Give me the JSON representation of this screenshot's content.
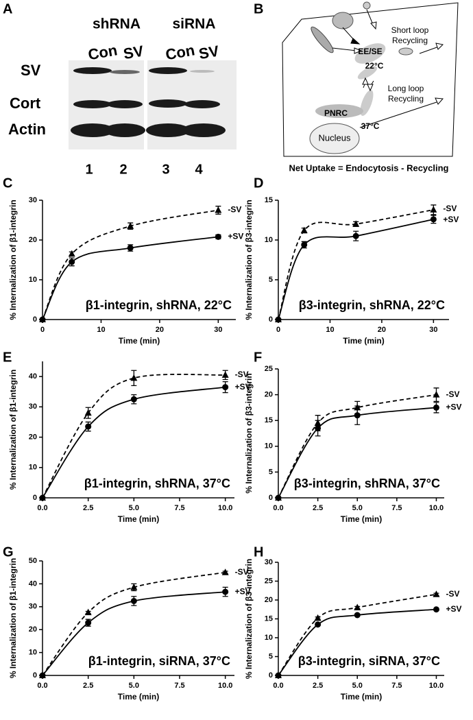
{
  "panel_a": {
    "label": "A",
    "groups": [
      "shRNA",
      "siRNA"
    ],
    "lanes": [
      "Con",
      "SV",
      "Con",
      "SV"
    ],
    "rows": [
      "SV",
      "Cort",
      "Actin"
    ],
    "lane_numbers": [
      "1",
      "2",
      "3",
      "4"
    ]
  },
  "panel_b": {
    "label": "B",
    "early": "EE/SE",
    "early_temp": "22°C",
    "perinuclear": "PNRC",
    "perinuclear_temp": "37°C",
    "nucleus": "Nucleus",
    "short_loop": [
      "Short loop",
      "Recycling"
    ],
    "long_loop": [
      "Long loop",
      "Recycling"
    ],
    "caption": "Net Uptake = Endocytosis - Recycling"
  },
  "chart_data": [
    {
      "label": "C",
      "type": "line",
      "title": "β1-integrin, shRNA, 22°C",
      "x_label": "Time (min)",
      "y_label": "% Internalization of β1-integrin",
      "x": [
        0,
        5,
        15,
        30
      ],
      "xlim": [
        0,
        33
      ],
      "xticks": [
        0,
        10,
        20,
        30
      ],
      "ylim": [
        0,
        30
      ],
      "yticks": [
        0,
        10,
        20,
        30
      ],
      "series": [
        {
          "name": "-SV",
          "color": "#000000",
          "marker": "triangle",
          "line_style": "dashed",
          "values": [
            0,
            16.5,
            23.5,
            27.5
          ],
          "errors": [
            0,
            0.5,
            0.8,
            1.0
          ]
        },
        {
          "name": "+SV",
          "color": "#000000",
          "marker": "circle",
          "line_style": "solid",
          "values": [
            0,
            14.5,
            18,
            20.8
          ],
          "errors": [
            0,
            1.0,
            0.8,
            0.5
          ]
        }
      ]
    },
    {
      "label": "D",
      "type": "line",
      "title": "β3-integrin, shRNA, 22°C",
      "x_label": "Time (min)",
      "y_label": "% Internalization of β3-integrin",
      "x": [
        0,
        5,
        15,
        30
      ],
      "xlim": [
        0,
        33
      ],
      "xticks": [
        0,
        10,
        20,
        30
      ],
      "ylim": [
        0,
        15
      ],
      "yticks": [
        0,
        5,
        10,
        15
      ],
      "series": [
        {
          "name": "-SV",
          "color": "#000000",
          "marker": "triangle",
          "line_style": "dashed",
          "values": [
            0,
            11.2,
            12,
            13.8
          ],
          "errors": [
            0,
            0.3,
            0.3,
            0.6
          ]
        },
        {
          "name": "+SV",
          "color": "#000000",
          "marker": "circle",
          "line_style": "solid",
          "values": [
            0,
            9.4,
            10.5,
            12.6
          ],
          "errors": [
            0,
            0.4,
            0.6,
            0.5
          ]
        }
      ]
    },
    {
      "label": "E",
      "type": "line",
      "title": "β1-integrin, shRNA, 37°C",
      "x_label": "Time (min)",
      "y_label": "% Internalization of β1-integrin",
      "x": [
        0,
        2.5,
        5,
        10
      ],
      "xlim": [
        0,
        10.5
      ],
      "xticks": [
        {
          "value": 0,
          "label": "0.0"
        },
        2.5,
        {
          "value": 5,
          "label": "5.0"
        },
        7.5,
        {
          "value": 10,
          "label": "10.0"
        }
      ],
      "ylim": [
        0,
        45
      ],
      "yticks": [
        0,
        10,
        20,
        30,
        40
      ],
      "series": [
        {
          "name": "-SV",
          "color": "#000000",
          "marker": "triangle",
          "line_style": "dashed",
          "values": [
            0,
            28,
            39.5,
            40.5
          ],
          "errors": [
            0,
            1.8,
            2.5,
            1.5
          ]
        },
        {
          "name": "+SV",
          "color": "#000000",
          "marker": "circle",
          "line_style": "solid",
          "values": [
            0,
            23.5,
            32.5,
            36.5
          ],
          "errors": [
            0,
            1.5,
            1.5,
            1.8
          ]
        }
      ]
    },
    {
      "label": "F",
      "type": "line",
      "title": "β3-integrin, shRNA, 37°C",
      "x_label": "Time (min)",
      "y_label": "% Internalization of β3-integrin",
      "x": [
        0,
        2.5,
        5,
        10
      ],
      "xlim": [
        0,
        10.5
      ],
      "xticks": [
        {
          "value": 0,
          "label": "0.0"
        },
        2.5,
        {
          "value": 5,
          "label": "5.0"
        },
        7.5,
        {
          "value": 10,
          "label": "10.0"
        }
      ],
      "ylim": [
        0,
        25
      ],
      "yticks": [
        0,
        5,
        10,
        15,
        20,
        25
      ],
      "series": [
        {
          "name": "-SV",
          "color": "#000000",
          "marker": "triangle",
          "line_style": "dashed",
          "values": [
            0,
            14.5,
            17.5,
            20
          ],
          "errors": [
            0,
            1.5,
            1.2,
            1.3
          ]
        },
        {
          "name": "+SV",
          "color": "#000000",
          "marker": "circle",
          "line_style": "solid",
          "values": [
            0,
            13.5,
            16,
            17.5
          ],
          "errors": [
            0,
            1.5,
            1.8,
            1.0
          ]
        }
      ]
    },
    {
      "label": "G",
      "type": "line",
      "title": "β1-integrin, siRNA, 37°C",
      "x_label": "Time (min)",
      "y_label": "% Internalization of β1-integrin",
      "x": [
        0,
        2.5,
        5,
        10
      ],
      "xlim": [
        0,
        10.5
      ],
      "xticks": [
        {
          "value": 0,
          "label": "0.0"
        },
        2.5,
        {
          "value": 5,
          "label": "5.0"
        },
        7.5,
        {
          "value": 10,
          "label": "10.0"
        }
      ],
      "ylim": [
        0,
        50
      ],
      "yticks": [
        0,
        10,
        20,
        30,
        40,
        50
      ],
      "series": [
        {
          "name": "-SV",
          "color": "#000000",
          "marker": "triangle",
          "line_style": "dashed",
          "values": [
            0,
            27.5,
            38.5,
            45
          ],
          "errors": [
            0,
            0.5,
            1.5,
            0.5
          ]
        },
        {
          "name": "+SV",
          "color": "#000000",
          "marker": "circle",
          "line_style": "solid",
          "values": [
            0,
            23,
            32.5,
            36.5
          ],
          "errors": [
            0,
            1.5,
            2.0,
            2.0
          ]
        }
      ]
    },
    {
      "label": "H",
      "type": "line",
      "title": "β3-integrin, siRNA, 37°C",
      "x_label": "Time (min)",
      "y_label": "% Internalization of β3-integrin",
      "x": [
        0,
        2.5,
        5,
        10
      ],
      "xlim": [
        0,
        10.5
      ],
      "xticks": [
        {
          "value": 0,
          "label": "0.0"
        },
        2.5,
        {
          "value": 5,
          "label": "5.0"
        },
        7.5,
        {
          "value": 10,
          "label": "10.0"
        }
      ],
      "ylim": [
        0,
        30
      ],
      "yticks": [
        0,
        5,
        10,
        15,
        20,
        25,
        30
      ],
      "series": [
        {
          "name": "-SV",
          "color": "#000000",
          "marker": "triangle",
          "line_style": "dashed",
          "values": [
            0,
            15.2,
            18,
            21.5
          ],
          "errors": [
            0,
            0.3,
            0.3,
            0.3
          ]
        },
        {
          "name": "+SV",
          "color": "#000000",
          "marker": "circle",
          "line_style": "solid",
          "values": [
            0,
            13.5,
            16,
            17.5
          ],
          "errors": [
            0,
            0.3,
            0.3,
            0.3
          ]
        }
      ]
    }
  ]
}
